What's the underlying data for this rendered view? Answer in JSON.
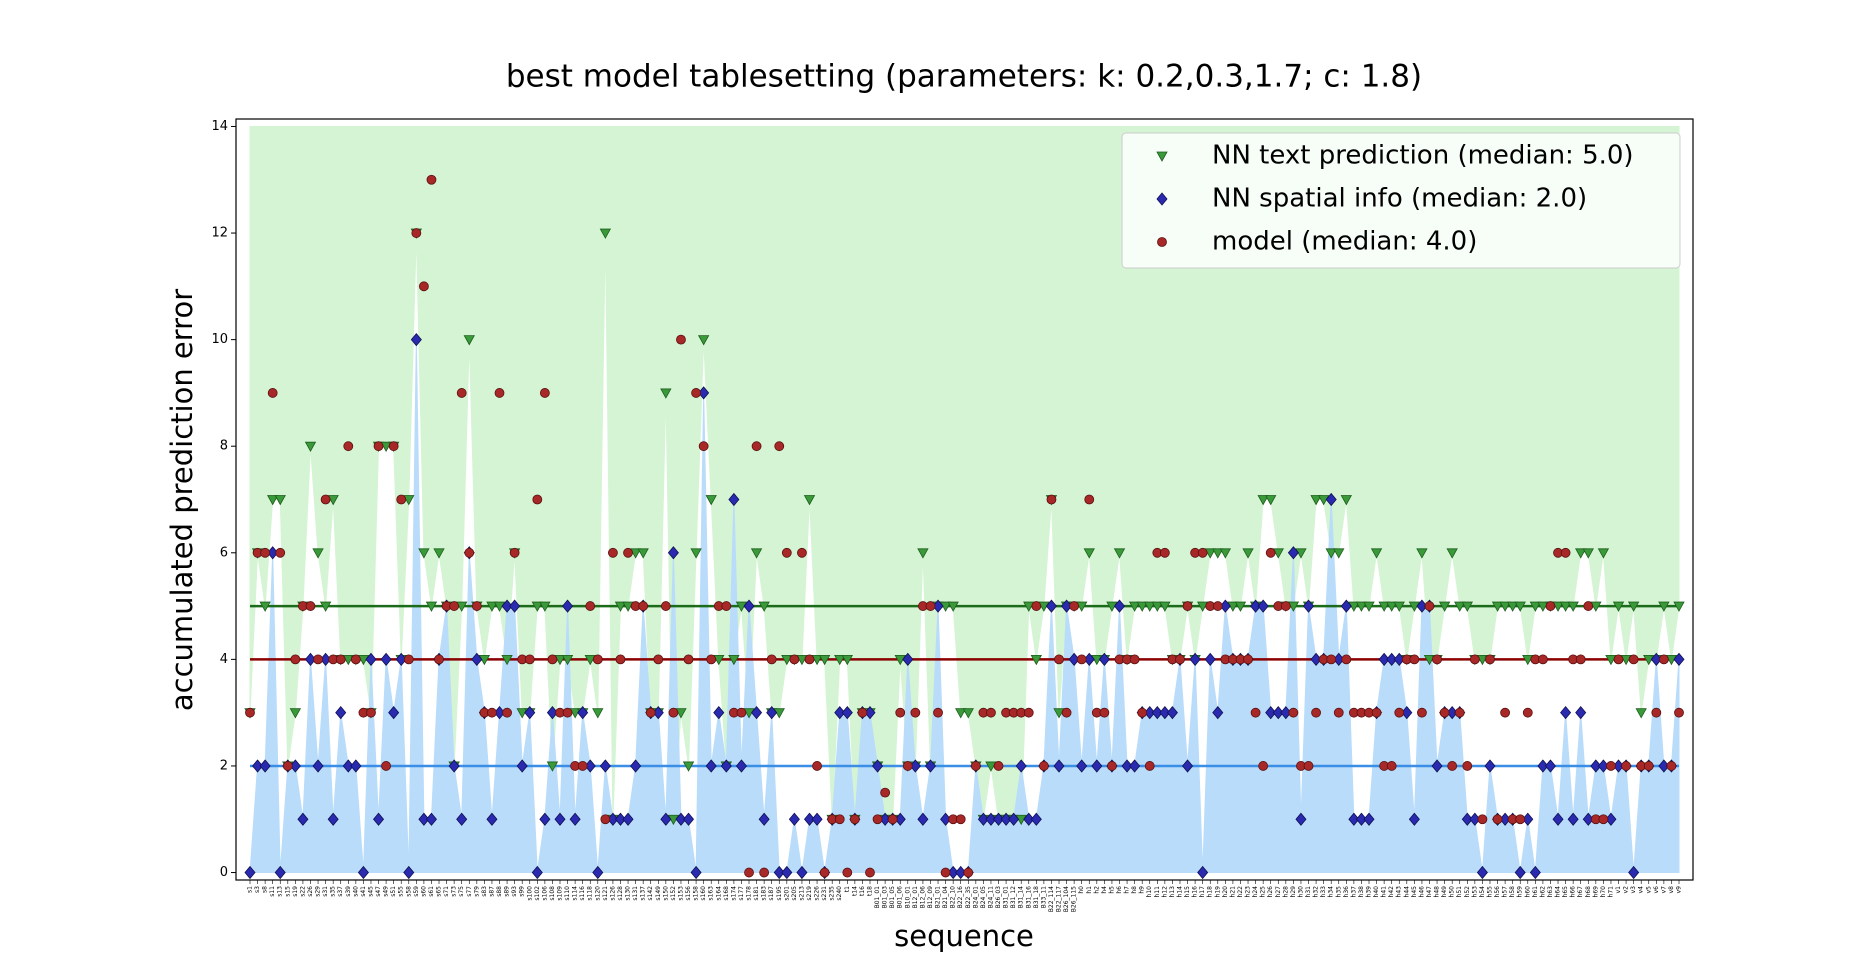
{
  "chart_data": {
    "type": "line",
    "title": "best model tablesetting (parameters: k: 0.2,0.3,1.7; c: 1.8)",
    "x_label": "sequence",
    "y_label": "accumulated prediction error",
    "ylim": [
      -0.14,
      14.14
    ],
    "yticks": [
      0,
      2,
      4,
      6,
      8,
      10,
      12,
      14
    ],
    "legend": "upper right",
    "categories": [
      "s1",
      "s3",
      "s8",
      "s11",
      "s13",
      "s15",
      "s19",
      "s22",
      "s26",
      "s29",
      "s31",
      "s35",
      "s37",
      "s39",
      "s40",
      "s41",
      "s45",
      "s47",
      "s49",
      "s51",
      "s55",
      "s58",
      "s59",
      "s60",
      "s61",
      "s65",
      "s71",
      "s73",
      "s75",
      "s77",
      "s79",
      "s83",
      "s87",
      "s88",
      "s89",
      "s93",
      "s99",
      "s100",
      "s102",
      "s106",
      "s108",
      "s109",
      "s110",
      "s114",
      "s116",
      "s118",
      "s120",
      "s121",
      "s126",
      "s128",
      "s130",
      "s131",
      "s137",
      "s142",
      "s149",
      "s150",
      "s152",
      "s153",
      "s156",
      "s158",
      "s160",
      "s163",
      "s164",
      "s168",
      "s174",
      "s177",
      "s178",
      "s181",
      "s183",
      "s187",
      "s195",
      "s201",
      "s205",
      "s213",
      "s219",
      "s226",
      "s231",
      "s235",
      "s240",
      "t1",
      "t14",
      "t16",
      "t18",
      "B01_01",
      "B01_03",
      "B01_05",
      "B01_06",
      "B10_01",
      "B12_01",
      "B12_06",
      "B12_09",
      "B21_01",
      "B21_04",
      "B22_10",
      "B22_16",
      "B22_35",
      "B24_01",
      "B24_05",
      "B24_11",
      "B26_03",
      "B31_01",
      "B31_12",
      "B31_14",
      "B31_16",
      "B31_18",
      "B33_11",
      "B22_114",
      "B22_117",
      "B26_104",
      "B26_115",
      "h0",
      "h1",
      "h2",
      "h4",
      "h5",
      "h6",
      "h7",
      "h8",
      "h9",
      "h10",
      "h11",
      "h12",
      "h13",
      "h14",
      "h15",
      "h16",
      "h17",
      "h18",
      "h19",
      "h20",
      "h21",
      "h22",
      "h23",
      "h24",
      "h25",
      "h26",
      "h27",
      "h28",
      "h29",
      "h30",
      "h31",
      "h32",
      "h33",
      "h34",
      "h35",
      "h36",
      "h37",
      "h38",
      "h39",
      "h40",
      "h41",
      "h42",
      "h43",
      "h44",
      "h45",
      "h46",
      "h47",
      "h48",
      "h49",
      "h50",
      "h51",
      "h52",
      "h53",
      "h54",
      "h55",
      "h56",
      "h57",
      "h58",
      "h59",
      "h60",
      "h61",
      "h62",
      "h63",
      "h64",
      "h65",
      "h66",
      "h67",
      "h68",
      "h69",
      "h70",
      "h71",
      "v1",
      "v2",
      "v3",
      "v4",
      "v5",
      "v6",
      "v7",
      "v8",
      "v9"
    ],
    "series": [
      {
        "name": "NN text prediction (median: 5.0)",
        "marker": "triangle",
        "color": "#3a9a3a",
        "edge": "#1d5e1d",
        "line_color": "#1b6b1b",
        "fill_color": "#d4f4d4",
        "fill": "above",
        "median": 5,
        "values": [
          3,
          6,
          5,
          7,
          7,
          2,
          3,
          5,
          8,
          6,
          5,
          7,
          4,
          4,
          4,
          4,
          3,
          8,
          8,
          8,
          4,
          7,
          12,
          6,
          5,
          6,
          5,
          2,
          5,
          10,
          5,
          4,
          5,
          5,
          4,
          6,
          3,
          3,
          5,
          5,
          2,
          4,
          4,
          3,
          3,
          4,
          3,
          12,
          1,
          5,
          5,
          6,
          6,
          3,
          3,
          9,
          1,
          3,
          2,
          6,
          10,
          7,
          4,
          2,
          4,
          5,
          3,
          6,
          5,
          3,
          3,
          4,
          4,
          4,
          7,
          4,
          4,
          1,
          4,
          4,
          1,
          3,
          3,
          2,
          1,
          1,
          4,
          2,
          2,
          6,
          2,
          5,
          5,
          5,
          3,
          3,
          2,
          1,
          2,
          1,
          1,
          1,
          1,
          5,
          4,
          5,
          7,
          3,
          5,
          5,
          5,
          6,
          4,
          4,
          5,
          6,
          4,
          5,
          5,
          5,
          5,
          5,
          4,
          4,
          5,
          4,
          5,
          6,
          6,
          6,
          5,
          5,
          6,
          5,
          7,
          7,
          6,
          5,
          5,
          6,
          5,
          7,
          7,
          6,
          6,
          7,
          5,
          5,
          5,
          6,
          5,
          5,
          5,
          4,
          5,
          6,
          4,
          4,
          5,
          6,
          5,
          5,
          4,
          4,
          4,
          5,
          5,
          5,
          5,
          4,
          5,
          5,
          5,
          5,
          5,
          5,
          6,
          6,
          5,
          6,
          4,
          5,
          4,
          5,
          3,
          4,
          4,
          5,
          4,
          5
        ]
      },
      {
        "name": "NN spatial info (median: 2.0)",
        "marker": "diamond",
        "color": "#2a2ab0",
        "edge": "#101050",
        "line_color": "#3a8ee6",
        "fill_color": "#b9dcfa",
        "fill": "below",
        "median": 2,
        "values": [
          0,
          2,
          2,
          6,
          0,
          2,
          2,
          1,
          4,
          2,
          4,
          1,
          3,
          2,
          2,
          0,
          4,
          1,
          4,
          3,
          4,
          0,
          10,
          1,
          1,
          4,
          5,
          2,
          1,
          6,
          4,
          3,
          1,
          3,
          5,
          5,
          2,
          3,
          0,
          1,
          3,
          1,
          5,
          1,
          3,
          2,
          0,
          2,
          1,
          1,
          1,
          2,
          5,
          3,
          3,
          1,
          6,
          1,
          1,
          0,
          9,
          2,
          3,
          2,
          7,
          2,
          5,
          3,
          1,
          3,
          0,
          0,
          1,
          0,
          1,
          1,
          0,
          1,
          3,
          3,
          1,
          3,
          3,
          2,
          1,
          1,
          1,
          4,
          2,
          1,
          2,
          5,
          1,
          0,
          0,
          0,
          2,
          1,
          1,
          1,
          1,
          1,
          2,
          1,
          1,
          2,
          5,
          2,
          5,
          4,
          2,
          4,
          2,
          4,
          2,
          5,
          2,
          2,
          3,
          3,
          3,
          3,
          3,
          4,
          2,
          4,
          0,
          4,
          3,
          5,
          4,
          4,
          4,
          5,
          5,
          3,
          3,
          3,
          6,
          1,
          5,
          4,
          4,
          7,
          4,
          5,
          1,
          1,
          1,
          3,
          4,
          4,
          4,
          3,
          1,
          5,
          5,
          2,
          3,
          3,
          3,
          1,
          1,
          0,
          2,
          1,
          1,
          1,
          0,
          1,
          0,
          2,
          2,
          1,
          3,
          1,
          3,
          1,
          2,
          2,
          1,
          2,
          2,
          0,
          2,
          2,
          4,
          2,
          2,
          4
        ]
      },
      {
        "name": "model (median: 4.0)",
        "marker": "circle",
        "color": "#a82828",
        "edge": "#5a1010",
        "line_color": "#8b0000",
        "median": 4,
        "values": [
          3,
          6,
          6,
          9,
          6,
          2,
          4,
          5,
          5,
          4,
          7,
          4,
          4,
          8,
          4,
          3,
          3,
          8,
          2,
          8,
          7,
          4,
          12,
          11,
          13,
          4,
          5,
          5,
          9,
          6,
          5,
          3,
          3,
          9,
          3,
          6,
          4,
          4,
          7,
          9,
          4,
          3,
          3,
          2,
          2,
          5,
          4,
          1,
          6,
          4,
          6,
          5,
          5,
          3,
          4,
          5,
          3,
          10,
          4,
          9,
          8,
          4,
          5,
          5,
          3,
          3,
          0,
          8,
          0,
          4,
          8,
          6,
          4,
          6,
          4,
          2,
          0,
          1,
          1,
          0,
          1,
          3,
          0,
          1,
          1.5,
          1,
          3,
          2,
          3,
          5,
          5,
          3,
          0,
          1,
          1,
          0,
          2,
          3,
          3,
          2,
          3,
          3,
          3,
          3,
          5,
          2,
          7,
          4,
          3,
          5,
          4,
          7,
          3,
          3,
          2,
          4,
          4,
          4,
          3,
          2,
          6,
          6,
          4,
          4,
          5,
          6,
          6,
          5,
          5,
          4,
          4,
          4,
          4,
          3,
          2,
          6,
          5,
          5,
          3,
          2,
          2,
          3,
          4,
          4,
          3,
          4,
          3,
          3,
          3,
          3,
          2,
          2,
          3,
          4,
          4,
          3,
          5,
          4,
          3,
          2,
          3,
          2,
          4,
          1,
          4,
          1,
          3,
          1,
          1,
          3,
          4,
          4,
          5,
          6,
          6,
          4,
          4,
          5,
          1,
          1,
          2,
          4,
          2,
          4,
          2,
          2,
          3,
          4,
          2,
          3
        ]
      }
    ]
  }
}
